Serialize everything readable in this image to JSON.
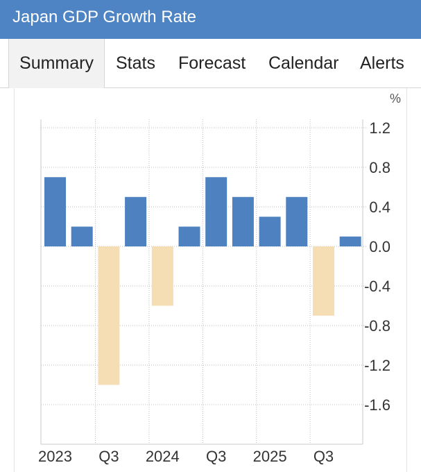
{
  "header": {
    "title": "Japan GDP Growth Rate"
  },
  "tabs": [
    {
      "label": "Summary",
      "active": true
    },
    {
      "label": "Stats",
      "active": false
    },
    {
      "label": "Forecast",
      "active": false
    },
    {
      "label": "Calendar",
      "active": false
    },
    {
      "label": "Alerts",
      "active": false
    }
  ],
  "colors": {
    "header_bg": "#4f84c4",
    "positive_bar": "#4e81c0",
    "negative_bar": "#f5deb3"
  },
  "chart_data": {
    "type": "bar",
    "title": "Japan GDP Growth Rate",
    "unit": "%",
    "categories": [
      "2023 Q1",
      "2023 Q2",
      "2023 Q3",
      "2023 Q4",
      "2024 Q1",
      "2024 Q2",
      "2024 Q3",
      "2024 Q4",
      "2025 Q1",
      "2025 Q2",
      "2025 Q3",
      "2025 Q4"
    ],
    "values": [
      0.7,
      0.2,
      -1.4,
      0.5,
      -0.6,
      0.2,
      0.7,
      0.5,
      0.3,
      0.5,
      -0.7,
      0.1
    ],
    "yticks": [
      "1.2",
      "0.8",
      "0.4",
      "0.0",
      "-0.4",
      "-0.8",
      "-1.2",
      "-1.6"
    ],
    "ylim": [
      -2.0,
      1.3
    ],
    "xtick_labels": [
      "2023",
      "Q3",
      "2024",
      "Q3",
      "2025",
      "Q3"
    ],
    "xlabel": "",
    "ylabel": "%",
    "grid": true
  }
}
